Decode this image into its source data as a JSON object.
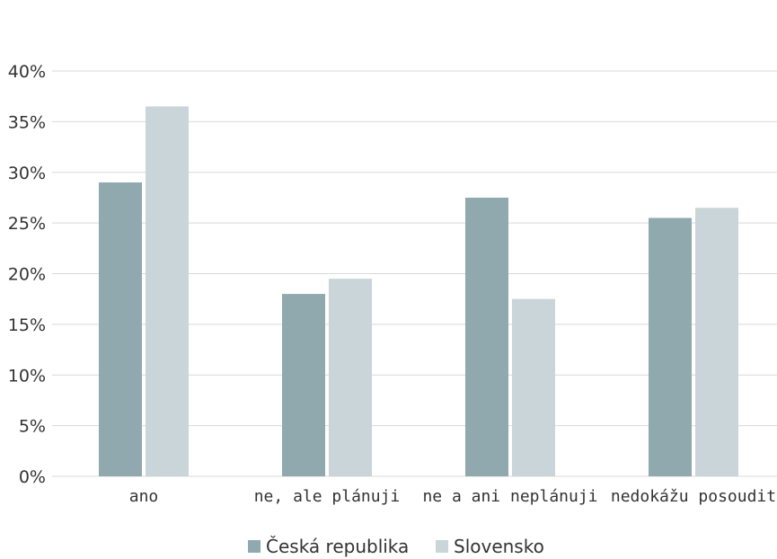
{
  "chart_data": {
    "type": "bar",
    "categories": [
      "ano",
      "ne, ale plánuji",
      "ne a ani neplánuji",
      "nedokážu posoudit"
    ],
    "series": [
      {
        "name": "Česká republika",
        "values": [
          29,
          18,
          27.5,
          25.5
        ],
        "color": "#8fa9ae"
      },
      {
        "name": "Slovensko",
        "values": [
          36.5,
          19.5,
          17.5,
          26.5
        ],
        "color": "#c9d5d8"
      }
    ],
    "ylim": [
      0,
      40
    ],
    "yticks": [
      "0%",
      "5%",
      "10%",
      "15%",
      "20%",
      "25%",
      "30%",
      "35%",
      "40%"
    ],
    "grid": true,
    "legend": "bottom",
    "colors": {
      "grid": "#d9d9d9",
      "text": "#333333"
    }
  }
}
